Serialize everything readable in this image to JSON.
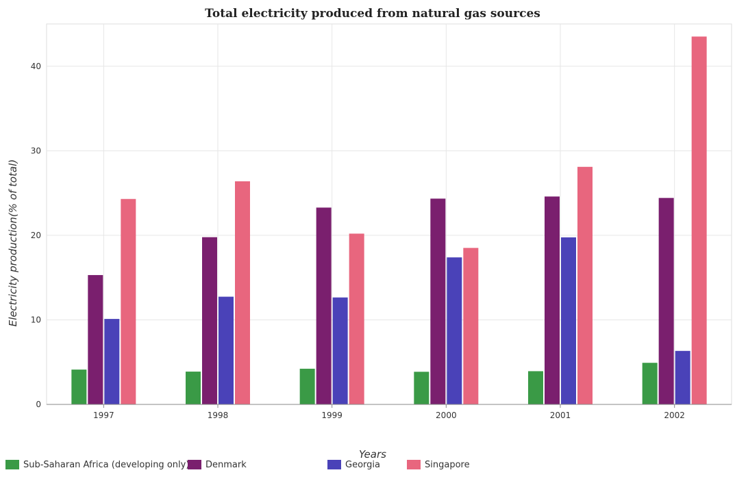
{
  "chart_data": {
    "type": "bar",
    "title": "Total electricity produced from natural gas sources",
    "xlabel": "Years",
    "ylabel": "Electricity production(% of total)",
    "ylim": [
      0,
      45
    ],
    "yticks": [
      0,
      10,
      20,
      30,
      40
    ],
    "categories": [
      "1997",
      "1998",
      "1999",
      "2000",
      "2001",
      "2002"
    ],
    "series": [
      {
        "name": "Sub-Saharan Africa (developing only)",
        "color": "#3a9a46",
        "values": [
          4.12,
          3.88,
          4.22,
          3.86,
          3.93,
          4.92
        ]
      },
      {
        "name": "Denmark",
        "color": "#7a1f6e",
        "values": [
          15.3,
          19.78,
          23.28,
          24.34,
          24.59,
          24.42
        ]
      },
      {
        "name": "Georgia",
        "color": "#4a42b8",
        "values": [
          10.11,
          12.74,
          12.65,
          17.39,
          19.76,
          6.33
        ]
      },
      {
        "name": "Singapore",
        "color": "#e8667e",
        "values": [
          24.3,
          26.39,
          20.2,
          18.51,
          28.1,
          43.51
        ]
      }
    ],
    "grid": true,
    "legend_position": "bottom-left"
  }
}
